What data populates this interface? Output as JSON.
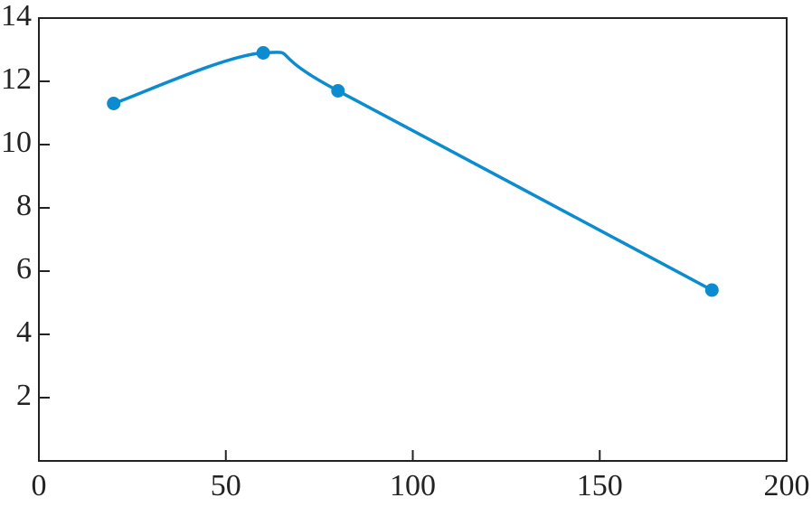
{
  "chart_data": {
    "type": "line",
    "x": [
      20,
      60,
      80,
      180
    ],
    "series": [
      {
        "color": "#0b8bd0",
        "values": [
          11.3,
          12.9,
          11.7,
          5.4
        ]
      }
    ],
    "xlim": [
      0,
      200
    ],
    "xticks": [
      0,
      50,
      100,
      150,
      200
    ],
    "ylim": [
      0,
      14
    ],
    "yticks": [
      2,
      4,
      6,
      8,
      10,
      12,
      14
    ],
    "smooth": true,
    "markers": true
  }
}
